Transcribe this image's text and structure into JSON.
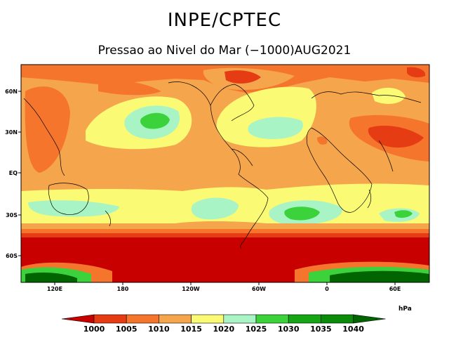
{
  "header": {
    "title": "INPE/CPTEC",
    "subtitle": "Pressao ao Nivel do Mar (−1000)AUG2021"
  },
  "map": {
    "lat_labels": [
      "60N",
      "30N",
      "EQ",
      "30S",
      "60S"
    ],
    "lon_labels": [
      "120E",
      "180",
      "120W",
      "60W",
      "0",
      "60E"
    ]
  },
  "colorbar": {
    "unit": "hPa",
    "levels": [
      "1000",
      "1005",
      "1010",
      "1015",
      "1020",
      "1025",
      "1030",
      "1035",
      "1040"
    ],
    "colors": [
      "#c80000",
      "#e63c14",
      "#f5752d",
      "#f5a54b",
      "#fbfa74",
      "#a9f4c4",
      "#3cd23c",
      "#15a515",
      "#0a8c0a",
      "#006400"
    ]
  }
}
